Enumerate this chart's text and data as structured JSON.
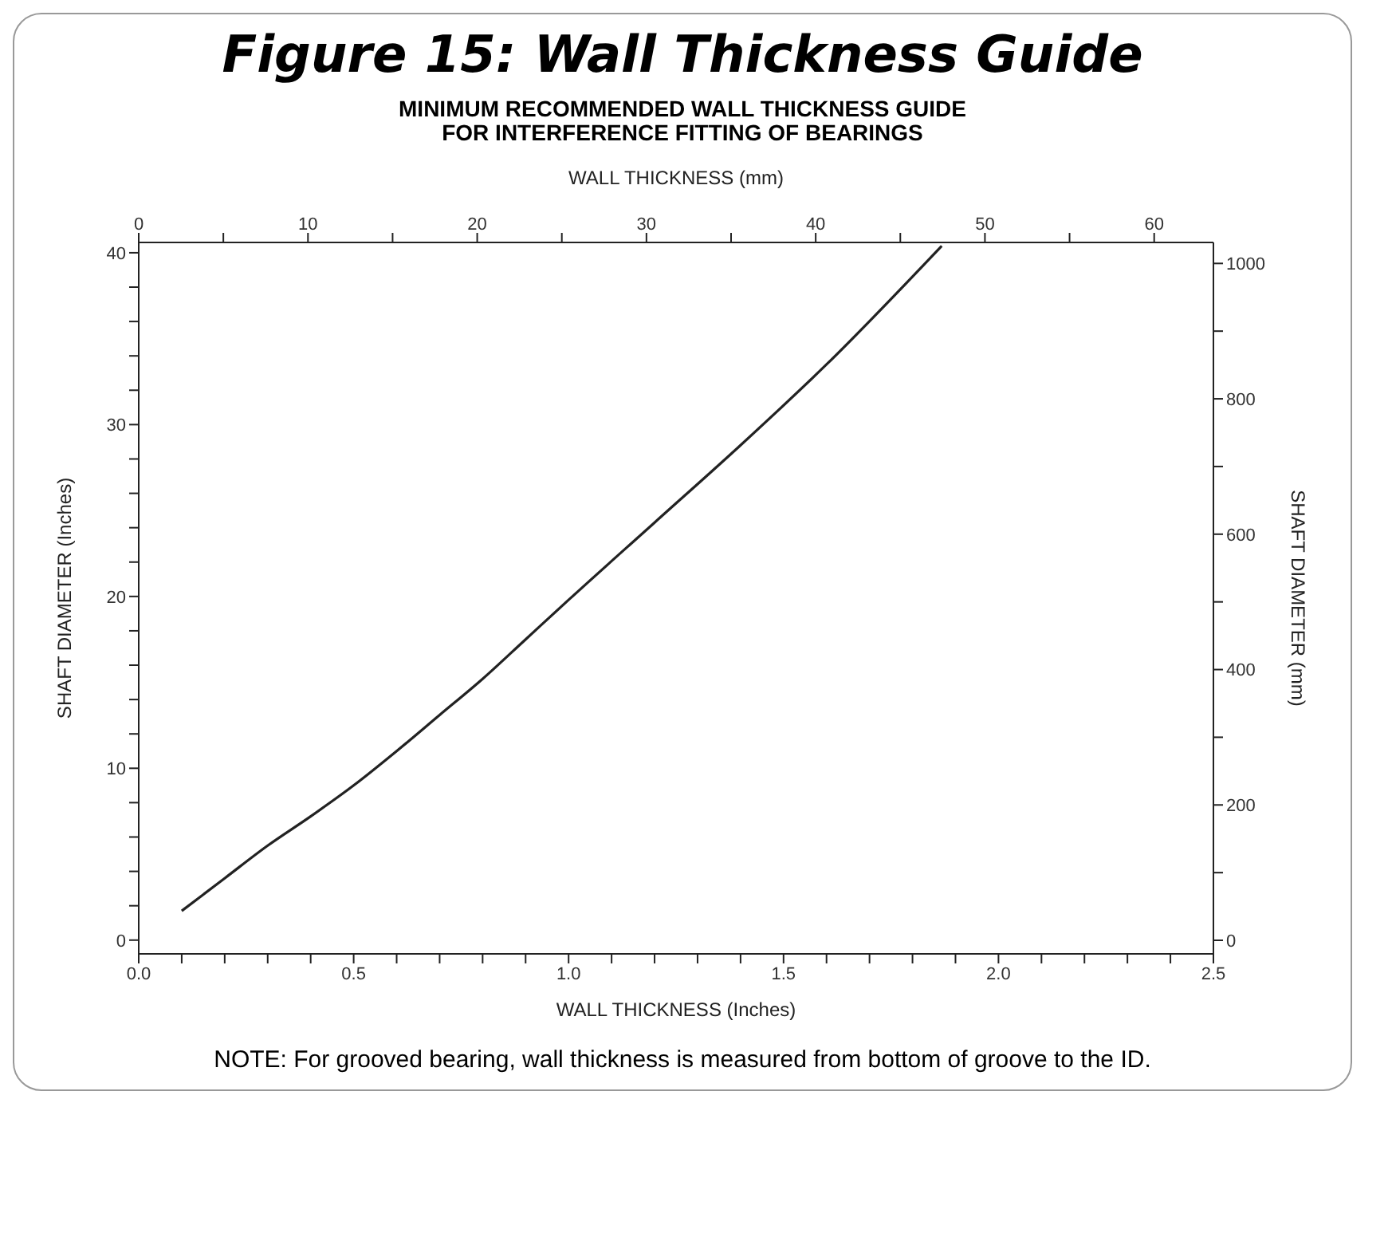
{
  "chart_data": {
    "type": "line",
    "title": "Figure 15: Wall Thickness Guide",
    "subtitle": "MINIMUM RECOMMENDED WALL THICKNESS GUIDE\nFOR INTERFERENCE FITTING OF BEARINGS",
    "xlabel": "WALL THICKNESS (Inches)",
    "x2label": "WALL THICKNESS (mm)",
    "ylabel": "SHAFT DIAMETER (Inches)",
    "y2label": "SHAFT DIAMETER (mm)",
    "annotations": [
      "NOTE: For grooved bearing, wall thickness is measured from bottom of groove to the ID."
    ],
    "x": [
      0.1,
      0.2,
      0.3,
      0.4,
      0.5,
      0.6,
      0.7,
      0.8,
      0.9,
      1.0,
      1.2,
      1.4,
      1.6,
      1.868
    ],
    "series": [
      {
        "color": "#222222",
        "values": [
          1.7,
          3.6,
          5.5,
          7.2,
          9.0,
          11.0,
          13.1,
          15.2,
          17.5,
          19.8,
          24.3,
          28.8,
          33.5,
          40.4
        ]
      }
    ],
    "xlim": [
      0,
      2.5
    ],
    "xticks": [
      {
        "value": 0,
        "label": "0.0"
      },
      {
        "value": 0.1,
        "label": null
      },
      {
        "value": 0.2,
        "label": null
      },
      {
        "value": 0.3,
        "label": null
      },
      {
        "value": 0.4,
        "label": null
      },
      0.5,
      {
        "value": 0.6,
        "label": null
      },
      {
        "value": 0.7,
        "label": null
      },
      {
        "value": 0.8,
        "label": null
      },
      {
        "value": 0.9,
        "label": null
      },
      {
        "value": 1,
        "label": "1.0"
      },
      {
        "value": 1.1,
        "label": null
      },
      {
        "value": 1.2,
        "label": null
      },
      {
        "value": 1.3,
        "label": null
      },
      {
        "value": 1.4,
        "label": null
      },
      1.5,
      {
        "value": 1.6,
        "label": null
      },
      {
        "value": 1.7,
        "label": null
      },
      {
        "value": 1.8,
        "label": null
      },
      {
        "value": 1.9,
        "label": null
      },
      {
        "value": 2,
        "label": "2.0"
      },
      {
        "value": 2.1,
        "label": null
      },
      {
        "value": 2.2,
        "label": null
      },
      {
        "value": 2.3,
        "label": null
      },
      {
        "value": 2.4,
        "label": null
      },
      2.5
    ],
    "x2lim": [
      0,
      63.5
    ],
    "x2ticks": [
      0,
      {
        "value": 5,
        "label": null
      },
      10,
      {
        "value": 15,
        "label": null
      },
      20,
      {
        "value": 25,
        "label": null
      },
      30,
      {
        "value": 35,
        "label": null
      },
      40,
      {
        "value": 45,
        "label": null
      },
      50,
      {
        "value": 55,
        "label": null
      },
      60
    ],
    "ylim": [
      -0.8,
      40.6
    ],
    "yticks": [
      0,
      {
        "value": 2,
        "label": null
      },
      {
        "value": 4,
        "label": null
      },
      {
        "value": 6,
        "label": null
      },
      {
        "value": 8,
        "label": null
      },
      10,
      {
        "value": 12,
        "label": null
      },
      {
        "value": 14,
        "label": null
      },
      {
        "value": 16,
        "label": null
      },
      {
        "value": 18,
        "label": null
      },
      20,
      {
        "value": 22,
        "label": null
      },
      {
        "value": 24,
        "label": null
      },
      {
        "value": 26,
        "label": null
      },
      {
        "value": 28,
        "label": null
      },
      30,
      {
        "value": 32,
        "label": null
      },
      {
        "value": 34,
        "label": null
      },
      {
        "value": 36,
        "label": null
      },
      {
        "value": 38,
        "label": null
      },
      40
    ],
    "y2lim": [
      -20,
      1031
    ],
    "y2ticks": [
      0,
      {
        "value": 100,
        "label": null
      },
      200,
      {
        "value": 300,
        "label": null
      },
      400,
      {
        "value": 500,
        "label": null
      },
      600,
      {
        "value": 700,
        "label": null
      },
      800,
      {
        "value": 900,
        "label": null
      },
      1000
    ],
    "grid": false,
    "marker": "none",
    "line_style": "solid"
  }
}
